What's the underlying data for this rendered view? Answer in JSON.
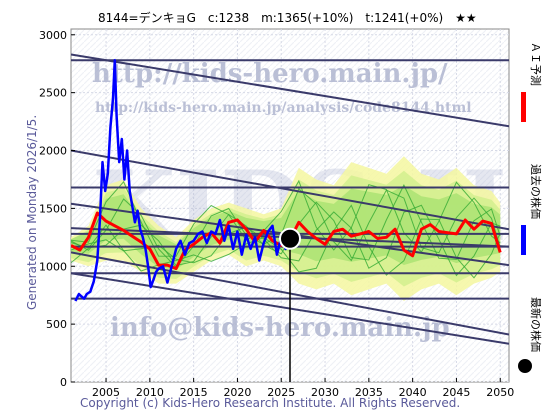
{
  "chart_data": {
    "type": "line",
    "title": "8144=デンキョG　c:1238　m:1365(+10%)　t:1241(+0%)　★★",
    "side_note": "Generated on Monday 2026/1/5.",
    "copyright": "Copyright (c) Kids-Hero Research Institute. All Rights Reserved.",
    "watermarks": [
      "http://kids-hero.main.jp/",
      "http://kids-hero.main.jp/analysis/code8144.html",
      "KIDS-HERO",
      "info@kids-hero.main.jp"
    ],
    "xlim": [
      2001,
      2051
    ],
    "ylim": [
      0,
      3050
    ],
    "x_ticks": [
      2005,
      2010,
      2015,
      2020,
      2025,
      2030,
      2035,
      2040,
      2045,
      2050
    ],
    "y_ticks": [
      0,
      500,
      1000,
      1500,
      2000,
      2500,
      3000
    ],
    "current_point": {
      "x": 2026.0,
      "y": 1238
    },
    "legend": [
      {
        "label": "ＡＩ予測",
        "color": "#ff0000"
      },
      {
        "label": "過去の株価",
        "color": "#0000ff"
      },
      {
        "label": "最新の株価",
        "color": "#000000"
      }
    ],
    "trend_lines": [
      {
        "x": [
          2001,
          2051
        ],
        "y": [
          2830,
          2210
        ]
      },
      {
        "x": [
          2001,
          2051
        ],
        "y": [
          2780,
          2780
        ]
      },
      {
        "x": [
          2001,
          2051
        ],
        "y": [
          2000,
          1320
        ]
      },
      {
        "x": [
          2001,
          2051
        ],
        "y": [
          1680,
          1680
        ]
      },
      {
        "x": [
          2001,
          2051
        ],
        "y": [
          1540,
          1010
        ]
      },
      {
        "x": [
          2001,
          2051
        ],
        "y": [
          1330,
          1170
        ]
      },
      {
        "x": [
          2001,
          2051
        ],
        "y": [
          1280,
          1280
        ]
      },
      {
        "x": [
          2001,
          2051
        ],
        "y": [
          1170,
          1170
        ]
      },
      {
        "x": [
          2001,
          2051
        ],
        "y": [
          940,
          940
        ]
      },
      {
        "x": [
          2001,
          2051
        ],
        "y": [
          1120,
          410
        ]
      },
      {
        "x": [
          2001,
          2051
        ],
        "y": [
          720,
          720
        ]
      },
      {
        "x": [
          2001,
          2051
        ],
        "y": [
          940,
          330
        ]
      }
    ],
    "series": [
      {
        "name": "過去の株価",
        "color": "#0000ff",
        "x": [
          2001.5,
          2001.9,
          2002.2,
          2002.5,
          2002.8,
          2003.2,
          2003.6,
          2004.0,
          2004.3,
          2004.6,
          2004.9,
          2005.2,
          2005.5,
          2005.8,
          2006.0,
          2006.2,
          2006.5,
          2006.8,
          2007.1,
          2007.4,
          2007.7,
          2008.0,
          2008.3,
          2008.6,
          2008.9,
          2009.2,
          2009.5,
          2009.8,
          2010.1,
          2010.4,
          2010.7,
          2011.0,
          2011.5,
          2012.0,
          2012.5,
          2013.0,
          2013.5,
          2014.0,
          2014.5,
          2015.0,
          2015.5,
          2016.0,
          2016.5,
          2017.0,
          2017.5,
          2018.0,
          2018.5,
          2019.0,
          2019.5,
          2020.0,
          2020.5,
          2021.0,
          2021.5,
          2022.0,
          2022.5,
          2023.0,
          2023.5,
          2024.0,
          2024.5,
          2025.0,
          2025.5,
          2026.0
        ],
        "y": [
          700,
          760,
          740,
          720,
          760,
          780,
          870,
          1050,
          1400,
          1900,
          1650,
          1800,
          2200,
          2450,
          2780,
          2300,
          1900,
          2100,
          1750,
          2000,
          1650,
          1520,
          1380,
          1480,
          1320,
          1250,
          1150,
          1000,
          820,
          880,
          950,
          980,
          1000,
          860,
          1000,
          1150,
          1220,
          1100,
          1200,
          1220,
          1280,
          1300,
          1200,
          1300,
          1280,
          1400,
          1220,
          1350,
          1150,
          1300,
          1100,
          1270,
          1150,
          1250,
          1050,
          1200,
          1300,
          1350,
          1100,
          1250,
          1150,
          1238
        ]
      },
      {
        "name": "ＡＩ予測",
        "color": "#ff0000",
        "x": [
          2001,
          2002,
          2003,
          2004,
          2005,
          2006,
          2007,
          2008,
          2009,
          2010,
          2011,
          2012,
          2013,
          2014,
          2015,
          2016,
          2017,
          2018,
          2019,
          2020,
          2021,
          2022,
          2023,
          2024,
          2025,
          2026,
          2027,
          2028,
          2029,
          2030,
          2031,
          2032,
          2033,
          2034,
          2035,
          2036,
          2037,
          2038,
          2039,
          2040,
          2041,
          2042,
          2043,
          2044,
          2045,
          2046,
          2047,
          2048,
          2049,
          2050
        ],
        "y": [
          1180,
          1140,
          1250,
          1460,
          1390,
          1350,
          1310,
          1260,
          1210,
          1150,
          1010,
          1010,
          980,
          1140,
          1190,
          1250,
          1290,
          1200,
          1380,
          1400,
          1320,
          1210,
          1310,
          1220,
          1180,
          1230,
          1380,
          1300,
          1240,
          1190,
          1300,
          1320,
          1260,
          1280,
          1300,
          1240,
          1250,
          1320,
          1140,
          1090,
          1320,
          1360,
          1300,
          1290,
          1280,
          1400,
          1320,
          1390,
          1370,
          1120
        ]
      }
    ],
    "forecast_band": {
      "x": [
        2001,
        2003,
        2005,
        2007,
        2009,
        2011,
        2013,
        2015,
        2017,
        2019,
        2021,
        2023,
        2025,
        2027,
        2029,
        2031,
        2033,
        2035,
        2037,
        2039,
        2041,
        2043,
        2045,
        2047,
        2049,
        2050
      ],
      "upper": [
        1250,
        1350,
        1700,
        1750,
        1500,
        1350,
        1250,
        1400,
        1500,
        1550,
        1500,
        1450,
        1500,
        1850,
        1750,
        1700,
        1900,
        1850,
        1800,
        1950,
        1800,
        1750,
        1850,
        1700,
        1650,
        1550
      ],
      "lower": [
        1050,
        1000,
        1050,
        1050,
        950,
        850,
        850,
        950,
        1050,
        1100,
        1000,
        1050,
        1000,
        850,
        800,
        850,
        750,
        800,
        850,
        700,
        800,
        850,
        750,
        850,
        900,
        950
      ]
    }
  }
}
